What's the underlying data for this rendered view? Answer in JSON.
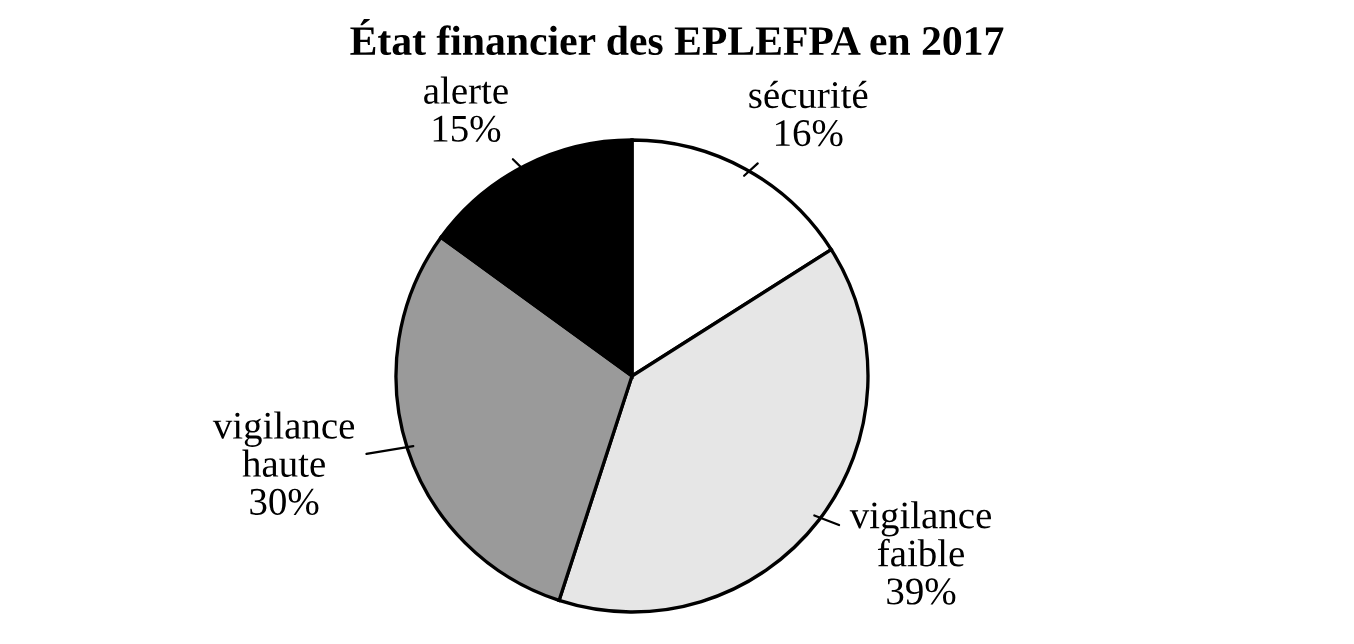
{
  "chart_data": {
    "type": "pie",
    "title": "État financier des EPLEFPA en 2017",
    "categories": [
      "sécurité",
      "vigilance faible",
      "vigilance haute",
      "alerte"
    ],
    "values": [
      16,
      39,
      30,
      15
    ],
    "colors": [
      "#ffffff",
      "#e6e6e6",
      "#9a9a9a",
      "#000000"
    ],
    "value_labels": [
      "16%",
      "39%",
      "30%",
      "15%"
    ]
  }
}
